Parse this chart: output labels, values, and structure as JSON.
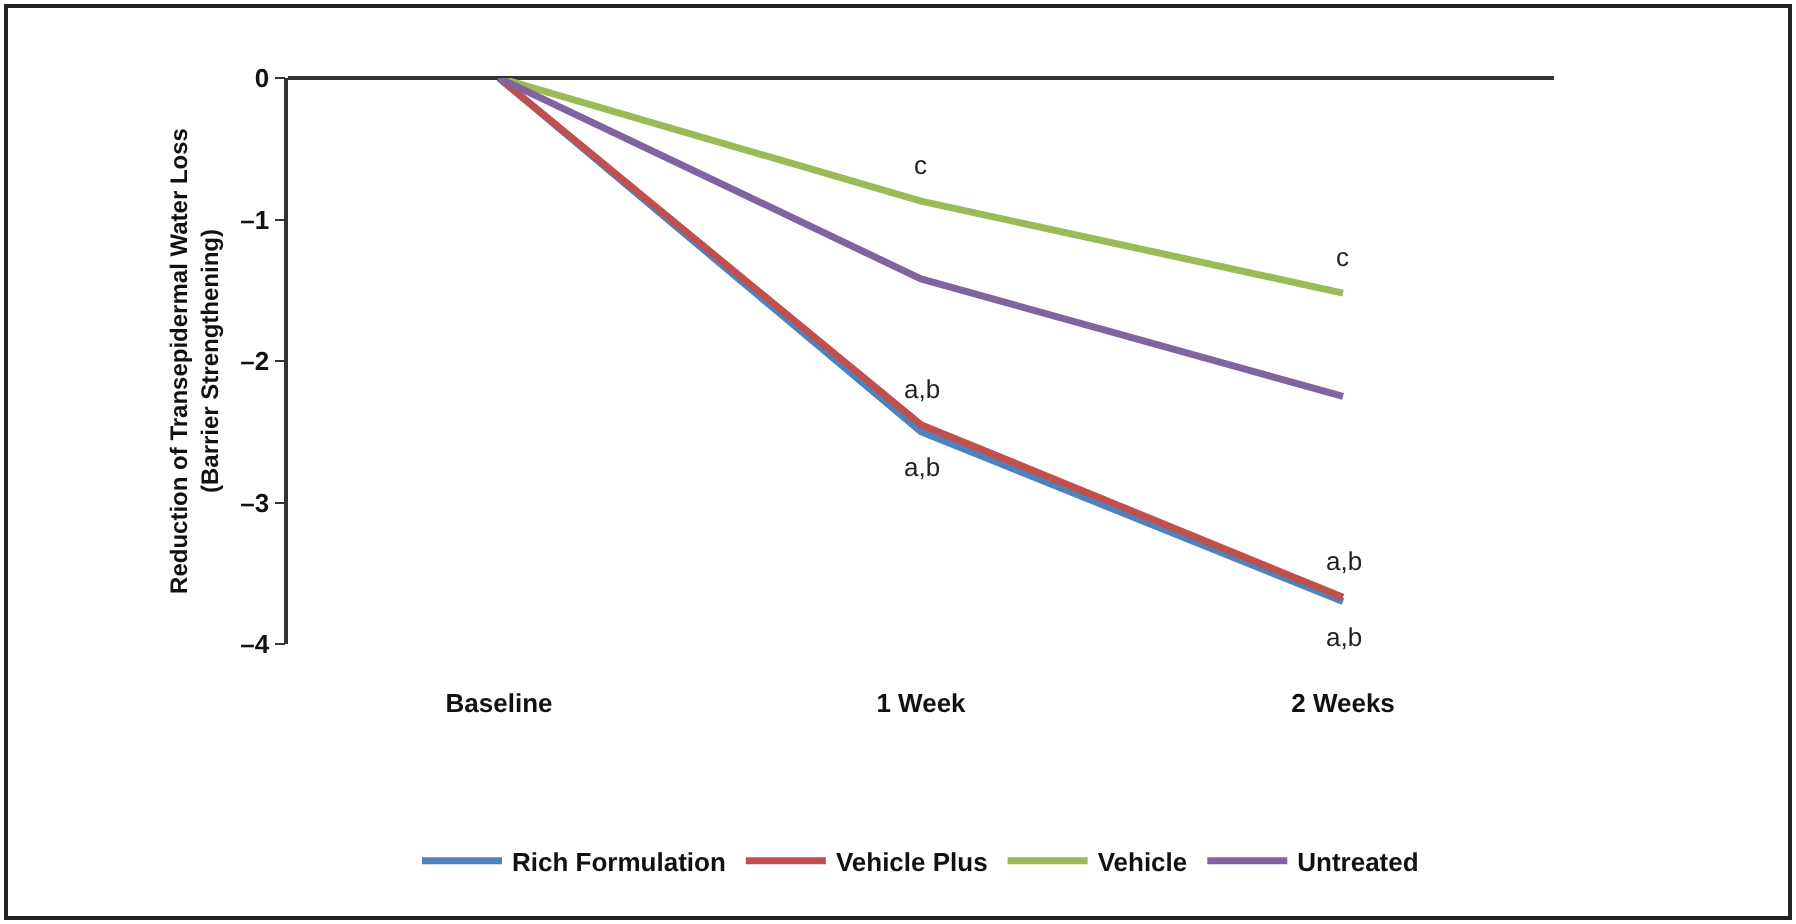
{
  "chart_data": {
    "type": "line",
    "ylabel": "Reduction of Transepidermal Water Loss\n(Barrier Strengthening)",
    "categories": [
      "Baseline",
      "1 Week",
      "2 Weeks"
    ],
    "series": [
      {
        "name": "Rich Formulation",
        "color": "#4f81bd",
        "values": [
          0,
          -2.5,
          -3.7
        ]
      },
      {
        "name": "Vehicle Plus",
        "color": "#c0504d",
        "values": [
          0,
          -2.45,
          -3.67
        ]
      },
      {
        "name": "Vehicle",
        "color": "#9bbb59",
        "values": [
          0,
          -0.87,
          -1.52
        ]
      },
      {
        "name": "Untreated",
        "color": "#8064a2",
        "values": [
          0,
          -1.42,
          -2.25
        ]
      }
    ],
    "ylim": [
      -4,
      0
    ],
    "yticks": [
      0,
      {
        "value": -1,
        "label": "–1"
      },
      {
        "value": -2,
        "label": "–2"
      },
      {
        "value": -3,
        "label": "–3"
      },
      {
        "value": -4,
        "label": "–4"
      }
    ],
    "grid": false,
    "legend": "bottom",
    "marker": "none",
    "line_style": "solid",
    "annotations": [
      {
        "text": "c",
        "x": "1 Week",
        "y": -0.87
      },
      {
        "text": "c",
        "x": "2 Weeks",
        "y": -1.52
      },
      {
        "text": "a,b",
        "x": "1 Week",
        "y": -2.45
      },
      {
        "text": "a,b",
        "x": "1 Week",
        "y": -2.5
      },
      {
        "text": "a,b",
        "x": "2 Weeks",
        "y": -3.67
      },
      {
        "text": "a,b",
        "x": "2 Weeks",
        "y": -3.7
      }
    ]
  }
}
